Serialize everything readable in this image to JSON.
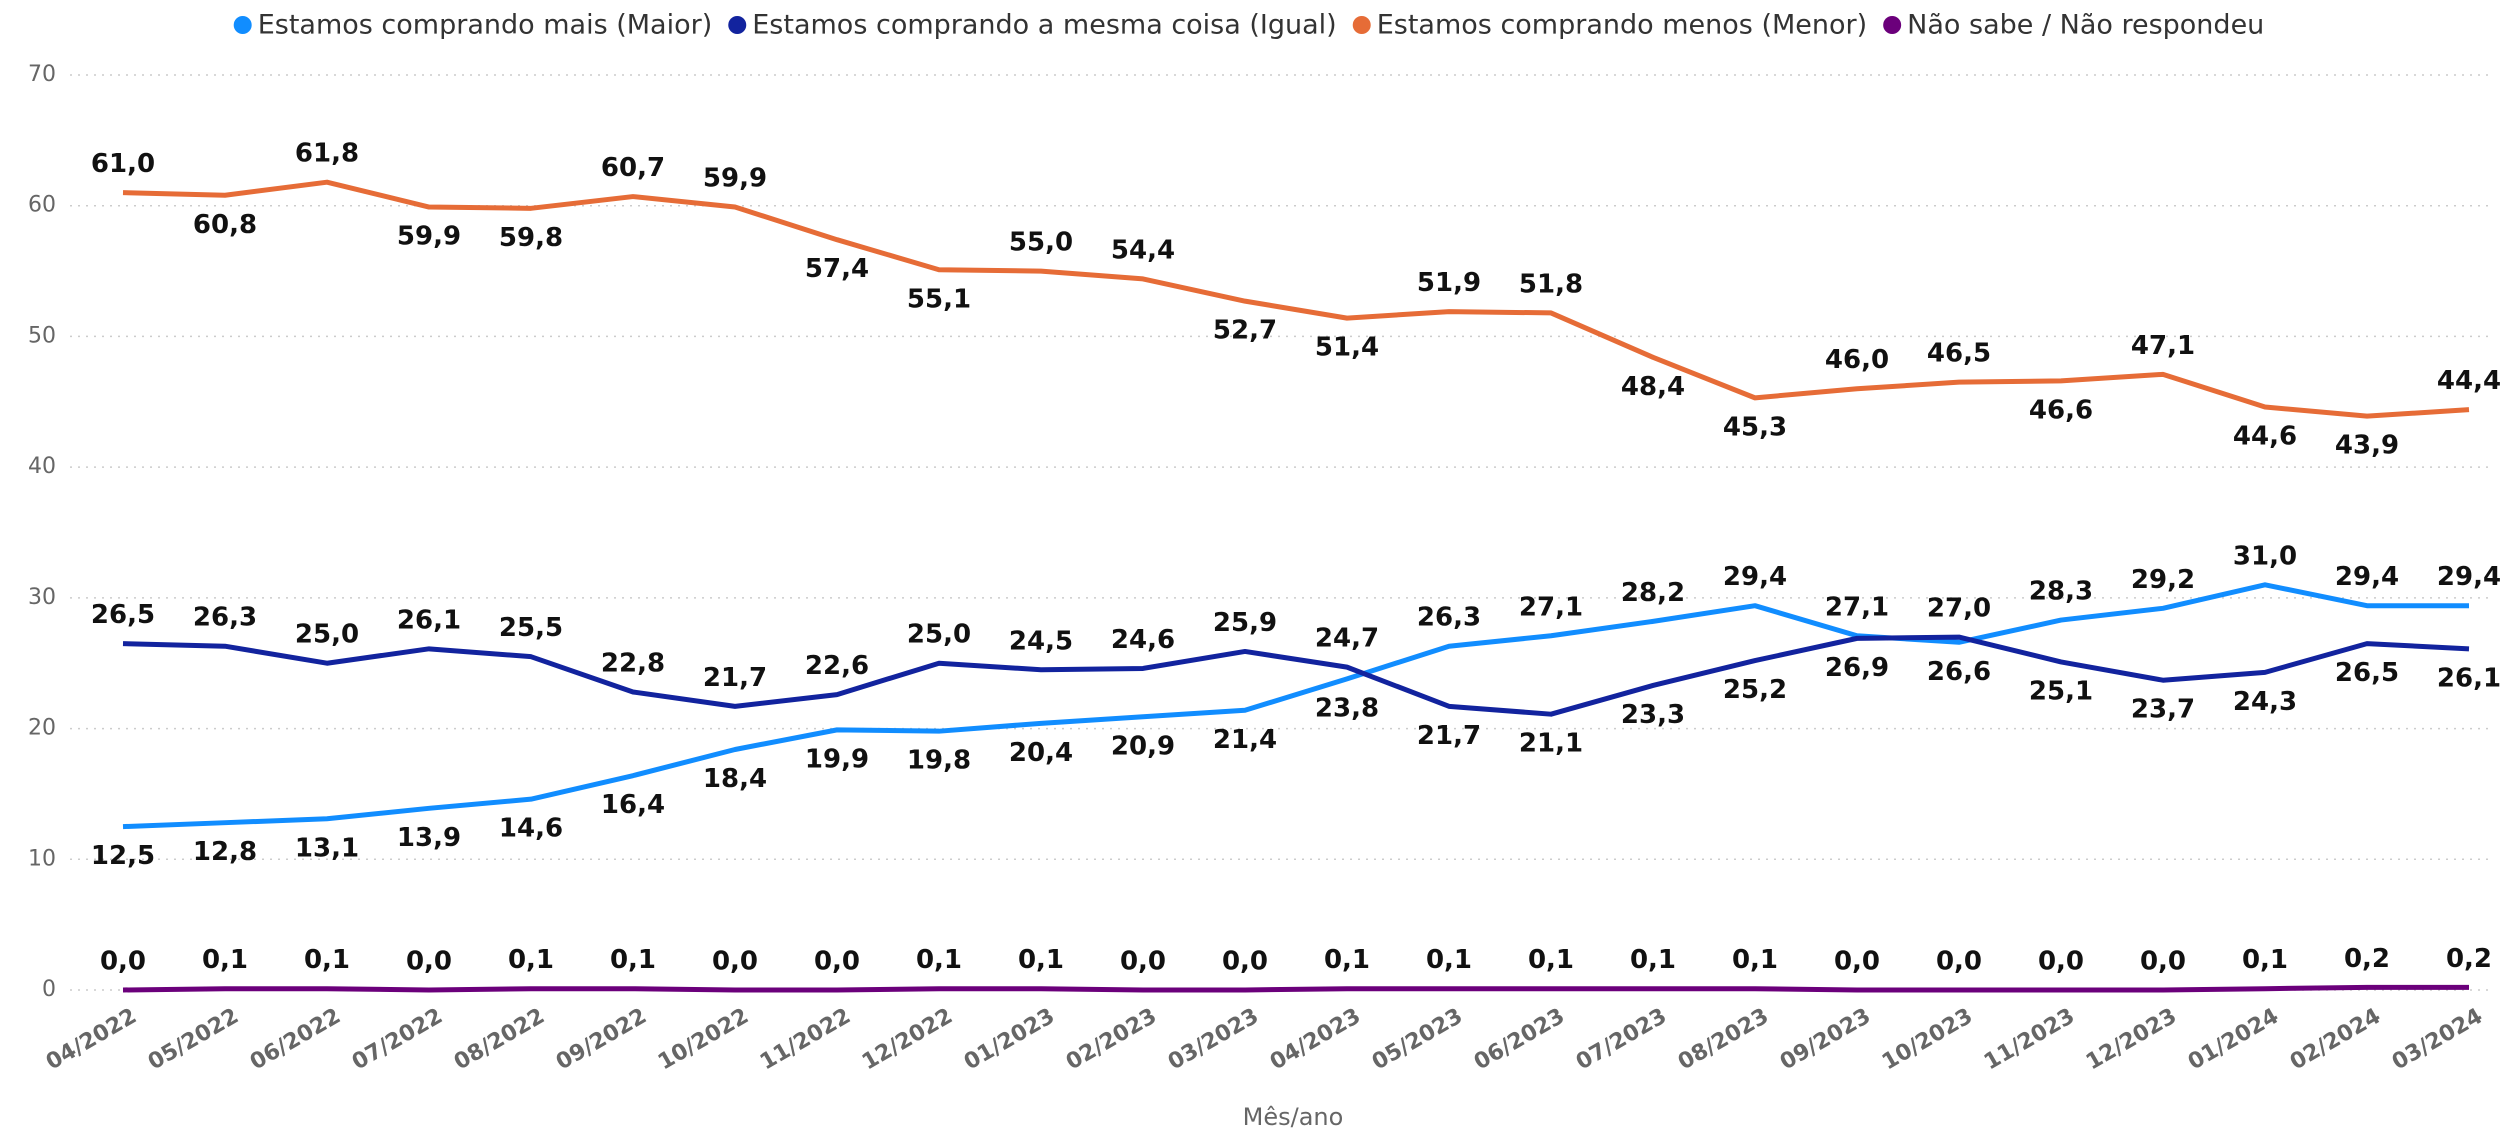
{
  "chart_data": {
    "type": "line",
    "x_label": "Mês/ano",
    "categories": [
      "04/2022",
      "05/2022",
      "06/2022",
      "07/2022",
      "08/2022",
      "09/2022",
      "10/2022",
      "11/2022",
      "12/2022",
      "01/2023",
      "02/2023",
      "03/2023",
      "04/2023",
      "05/2023",
      "06/2023",
      "07/2023",
      "08/2023",
      "09/2023",
      "10/2023",
      "11/2023",
      "12/2023",
      "01/2024",
      "02/2024",
      "03/2024"
    ],
    "ylim": [
      0,
      70
    ],
    "yticks": [
      0,
      10,
      20,
      30,
      40,
      50,
      60,
      70
    ],
    "grid": true,
    "series": [
      {
        "name": "Estamos comprando mais (Maior)",
        "color": "#118DFF",
        "values": [
          12.5,
          12.8,
          13.1,
          13.9,
          14.6,
          16.4,
          18.4,
          19.9,
          19.8,
          20.4,
          20.9,
          21.4,
          23.8,
          26.3,
          27.1,
          28.2,
          29.4,
          27.1,
          26.6,
          28.3,
          29.2,
          31.0,
          29.4,
          29.4
        ],
        "value_labels": [
          "12,5",
          "12,8",
          "13,1",
          "13,9",
          "14,6",
          "16,4",
          "18,4",
          "19,9",
          "19,8",
          "20,4",
          "20,9",
          "21,4",
          "23,8",
          "26,3",
          "27,1",
          "28,2",
          "29,4",
          "27,1",
          "26,6",
          "28,3",
          "29,2",
          "31,0",
          "29,4",
          "29,4"
        ]
      },
      {
        "name": "Estamos comprando a mesma coisa (Igual)",
        "color": "#12239E",
        "values": [
          26.5,
          26.3,
          25.0,
          26.1,
          25.5,
          22.8,
          21.7,
          22.6,
          25.0,
          24.5,
          24.6,
          25.9,
          24.7,
          21.7,
          21.1,
          23.3,
          25.2,
          26.9,
          27.0,
          25.1,
          23.7,
          24.3,
          26.5,
          26.1
        ],
        "value_labels": [
          "26,5",
          "26,3",
          "25,0",
          "26,1",
          "25,5",
          "22,8",
          "21,7",
          "22,6",
          "25,0",
          "24,5",
          "24,6",
          "25,9",
          "24,7",
          "21,7",
          "21,1",
          "23,3",
          "25,2",
          "26,9",
          "27,0",
          "25,1",
          "23,7",
          "24,3",
          "26,5",
          "26,1"
        ]
      },
      {
        "name": "Estamos comprando menos (Menor)",
        "color": "#E66C37",
        "values": [
          61.0,
          60.8,
          61.8,
          59.9,
          59.8,
          60.7,
          59.9,
          57.4,
          55.1,
          55.0,
          54.4,
          52.7,
          51.4,
          51.9,
          51.8,
          48.4,
          45.3,
          46.0,
          46.5,
          46.6,
          47.1,
          44.6,
          43.9,
          44.4
        ],
        "value_labels": [
          "61,0",
          "60,8",
          "61,8",
          "59,9",
          "59,8",
          "60,7",
          "59,9",
          "57,4",
          "55,1",
          "55,0",
          "54,4",
          "52,7",
          "51,4",
          "51,9",
          "51,8",
          "48,4",
          "45,3",
          "46,0",
          "46,5",
          "46,6",
          "47,1",
          "44,6",
          "43,9",
          "44,4"
        ]
      },
      {
        "name": "Não sabe / Não respondeu",
        "color": "#6B007B",
        "values": [
          0.0,
          0.1,
          0.1,
          0.0,
          0.1,
          0.1,
          0.0,
          0.0,
          0.1,
          0.1,
          0.0,
          0.0,
          0.1,
          0.1,
          0.1,
          0.1,
          0.1,
          0.0,
          0.0,
          0.0,
          0.0,
          0.1,
          0.2,
          0.2
        ],
        "value_labels": [
          "0,0",
          "0,1",
          "0,1",
          "0,0",
          "0,1",
          "0,1",
          "0,0",
          "0,0",
          "0,1",
          "0,1",
          "0,0",
          "0,0",
          "0,1",
          "0,1",
          "0,1",
          "0,1",
          "0,1",
          "0,0",
          "0,0",
          "0,0",
          "0,0",
          "0,1",
          "0,2",
          "0,2"
        ]
      }
    ]
  }
}
